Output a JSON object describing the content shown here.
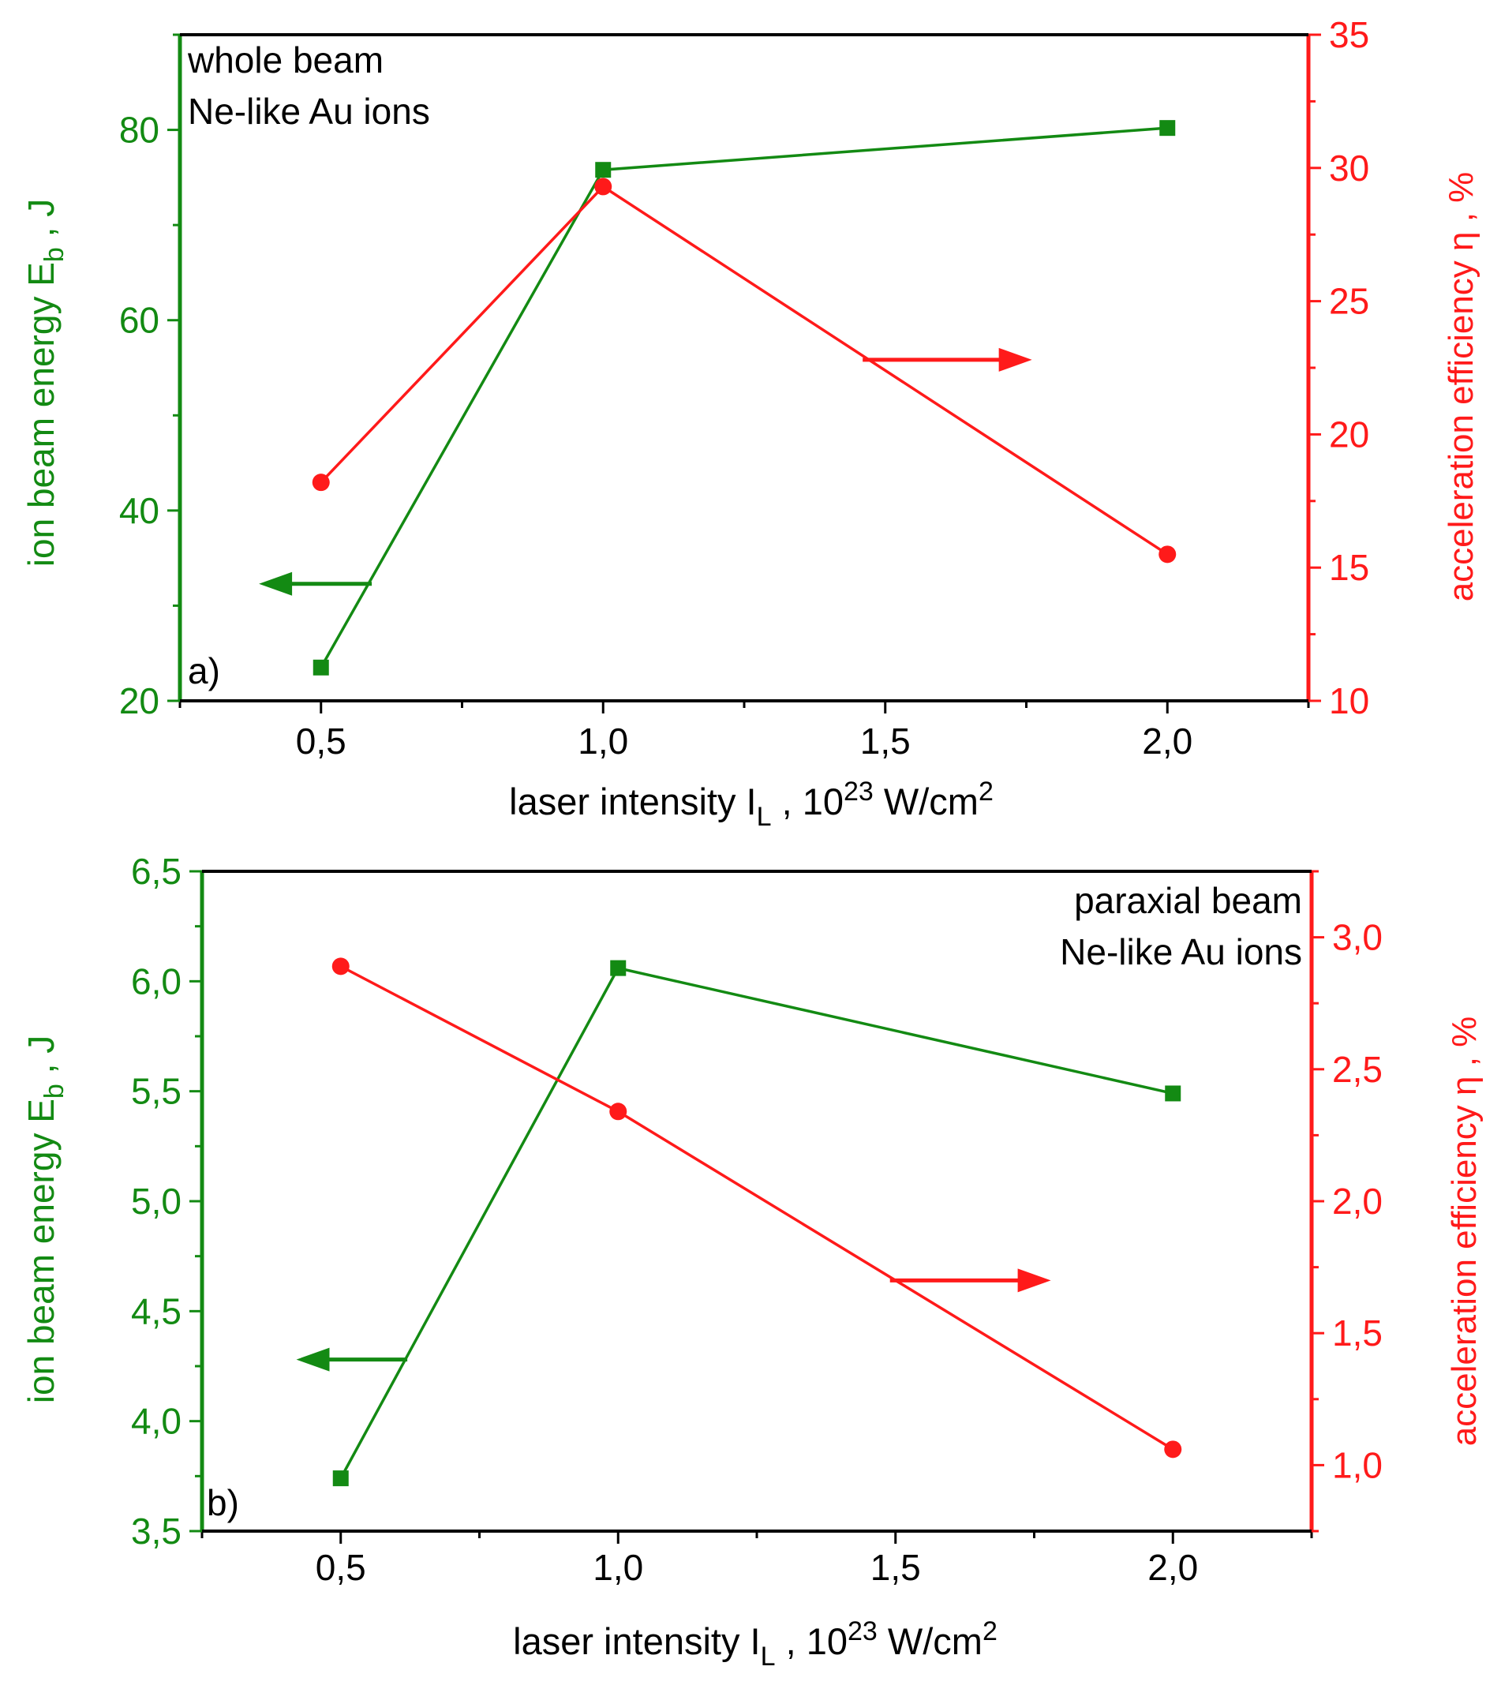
{
  "colors": {
    "green": "#138a13",
    "red": "#ff1a1a",
    "axis": "#000000"
  },
  "chart_data": [
    {
      "type": "line",
      "panel_label": "a)",
      "annotation_lines": [
        "whole beam",
        "Ne-like Au ions"
      ],
      "xlabel": {
        "main": "laser intensity I",
        "sub": "L",
        "mid": " , 10",
        "sup": "23",
        "unit": " W/cm",
        "sup2": "2"
      },
      "ylabel_left": {
        "main": "ion beam energy E",
        "sub": "b",
        "tail": " , J"
      },
      "ylabel_right": {
        "main": "acceleration efficiency η , %"
      },
      "x": [
        0.5,
        1.0,
        2.0
      ],
      "xlim": [
        0.25,
        2.25
      ],
      "xticks": [
        0.5,
        1.0,
        1.5,
        2.0
      ],
      "xtick_labels": [
        "0,5",
        "1,0",
        "1,5",
        "2,0"
      ],
      "ylim_left": [
        20,
        90
      ],
      "yticks_left": [
        20,
        40,
        60,
        80
      ],
      "ytick_labels_left": [
        "20",
        "40",
        "60",
        "80"
      ],
      "ylim_right": [
        10,
        35
      ],
      "yticks_right": [
        10,
        15,
        20,
        25,
        30,
        35
      ],
      "ytick_labels_right": [
        "10",
        "15",
        "20",
        "25",
        "30",
        "35"
      ],
      "series": [
        {
          "name": "ion beam energy",
          "axis": "left",
          "marker": "square",
          "color": "#138a13",
          "values": [
            23.5,
            75.8,
            80.2
          ]
        },
        {
          "name": "acceleration efficiency",
          "axis": "right",
          "marker": "circle",
          "color": "#ff1a1a",
          "values": [
            18.2,
            29.3,
            15.5
          ]
        }
      ],
      "arrows": [
        {
          "series": "ion beam energy",
          "direction": "left",
          "x_from": 0.59,
          "x_to": 0.39,
          "y": 32.3,
          "axis": "left"
        },
        {
          "series": "acceleration efficiency",
          "direction": "right",
          "x_from": 1.46,
          "x_to": 1.76,
          "y": 22.8,
          "axis": "right"
        }
      ]
    },
    {
      "type": "line",
      "panel_label": "b)",
      "annotation_lines": [
        "paraxial beam",
        "Ne-like Au ions"
      ],
      "xlabel": {
        "main": "laser intensity I",
        "sub": "L",
        "mid": " , 10",
        "sup": "23",
        "unit": " W/cm",
        "sup2": "2"
      },
      "ylabel_left": {
        "main": "ion beam energy E",
        "sub": "b",
        "tail": " , J"
      },
      "ylabel_right": {
        "main": "acceleration efficiency η , %"
      },
      "x": [
        0.5,
        1.0,
        2.0
      ],
      "xlim": [
        0.25,
        2.25
      ],
      "xticks": [
        0.5,
        1.0,
        1.5,
        2.0
      ],
      "xtick_labels": [
        "0,5",
        "1,0",
        "1,5",
        "2,0"
      ],
      "ylim_left": [
        3.5,
        6.5
      ],
      "yticks_left": [
        3.5,
        4.0,
        4.5,
        5.0,
        5.5,
        6.0,
        6.5
      ],
      "ytick_labels_left": [
        "3,5",
        "4,0",
        "4,5",
        "5,0",
        "5,5",
        "6,0",
        "6,5"
      ],
      "ylim_right": [
        0.75,
        3.25
      ],
      "yticks_right": [
        1.0,
        1.5,
        2.0,
        2.5,
        3.0
      ],
      "ytick_labels_right": [
        "1,0",
        "1,5",
        "2,0",
        "2,5",
        "3,0"
      ],
      "series": [
        {
          "name": "ion beam energy",
          "axis": "left",
          "marker": "square",
          "color": "#138a13",
          "values": [
            3.74,
            6.06,
            5.49
          ]
        },
        {
          "name": "acceleration efficiency",
          "axis": "right",
          "marker": "circle",
          "color": "#ff1a1a",
          "values": [
            2.89,
            2.34,
            1.06
          ]
        }
      ],
      "arrows": [
        {
          "series": "ion beam energy",
          "direction": "left",
          "x_from": 0.62,
          "x_to": 0.42,
          "y": 4.28,
          "axis": "left"
        },
        {
          "series": "acceleration efficiency",
          "direction": "right",
          "x_from": 1.49,
          "x_to": 1.78,
          "y": 1.7,
          "axis": "right"
        }
      ]
    }
  ]
}
